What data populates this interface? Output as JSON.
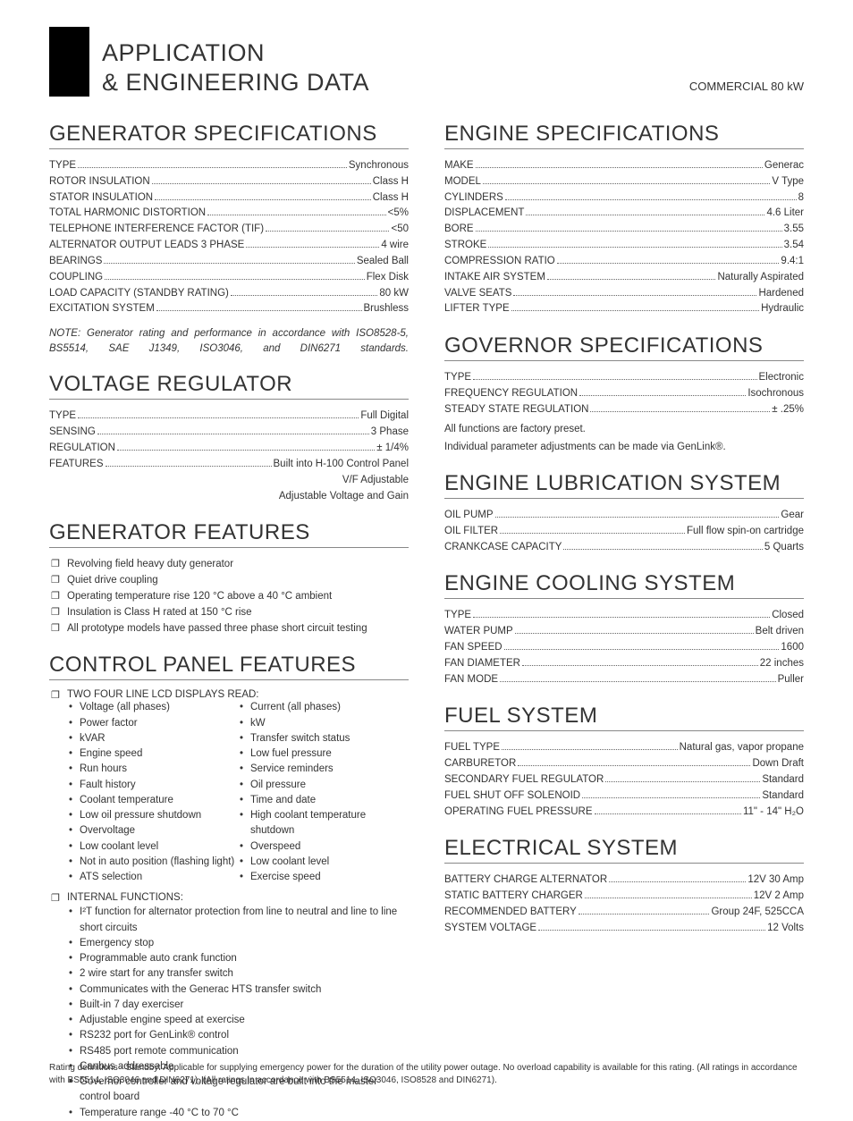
{
  "header": {
    "title_line1": "APPLICATION",
    "title_line2": "& ENGINEERING DATA",
    "right": "COMMERCIAL 80 kW"
  },
  "left": {
    "generator_specs": {
      "title": "GENERATOR SPECIFICATIONS",
      "rows": [
        {
          "label": "TYPE",
          "value": "Synchronous"
        },
        {
          "label": "ROTOR INSULATION",
          "value": "Class H"
        },
        {
          "label": "STATOR INSULATION",
          "value": "Class H"
        },
        {
          "label": "TOTAL HARMONIC DISTORTION",
          "value": "<5%"
        },
        {
          "label": "TELEPHONE INTERFERENCE FACTOR (TIF)",
          "value": "<50"
        },
        {
          "label": "ALTERNATOR OUTPUT LEADS 3 PHASE",
          "value": "4 wire"
        },
        {
          "label": "BEARINGS",
          "value": "Sealed Ball"
        },
        {
          "label": "COUPLING",
          "value": "Flex Disk"
        },
        {
          "label": "LOAD CAPACITY (STANDBY RATING)",
          "value": "80 kW"
        },
        {
          "label": "EXCITATION SYSTEM",
          "value": "Brushless"
        }
      ],
      "note": "NOTE: Generator rating and performance in accordance with ISO8528-5, BS5514, SAE J1349, ISO3046, and DIN6271 standards."
    },
    "voltage_regulator": {
      "title": "VOLTAGE REGULATOR",
      "rows": [
        {
          "label": "TYPE",
          "value": "Full Digital"
        },
        {
          "label": "SENSING",
          "value": "3 Phase"
        },
        {
          "label": "REGULATION",
          "value": "± 1/4%"
        },
        {
          "label": "FEATURES",
          "value": "Built into H-100 Control Panel"
        }
      ],
      "trailing": [
        "V/F Adjustable",
        "Adjustable Voltage and Gain"
      ]
    },
    "generator_features": {
      "title": "GENERATOR FEATURES",
      "items": [
        "Revolving field heavy duty generator",
        "Quiet drive coupling",
        "Operating temperature rise 120 °C above a 40 °C ambient",
        "Insulation is Class H rated at 150 °C rise",
        "All prototype models have passed three phase short circuit testing"
      ]
    },
    "control_panel": {
      "title": "CONTROL PANEL FEATURES",
      "lcd_heading": "TWO FOUR LINE LCD DISPLAYS READ:",
      "lcd_left": [
        "Voltage (all phases)",
        "Power factor",
        "kVAR",
        "Engine speed",
        "Run hours",
        "Fault history",
        "Coolant temperature",
        "Low oil pressure shutdown",
        "Overvoltage",
        "Low coolant level",
        "Not in auto position (flashing light)",
        "ATS selection"
      ],
      "lcd_right": [
        "Current (all phases)",
        "kW",
        "Transfer switch status",
        "Low fuel pressure",
        "Service reminders",
        "Oil pressure",
        "Time and date",
        "High coolant temperature shutdown",
        "Overspeed",
        "Low coolant level",
        "Exercise speed"
      ],
      "internal_heading": "INTERNAL FUNCTIONS:",
      "internal_items": [
        "I²T function for alternator protection from line to neutral and line to line short circuits",
        "Emergency stop",
        "Programmable auto crank function",
        "2 wire start for any transfer switch",
        "Communicates with the Generac HTS transfer switch",
        "Built-in 7 day exerciser",
        "Adjustable engine speed at exercise",
        "RS232 port for GenLink® control",
        "RS485 port remote communication",
        "Canbus addressable",
        "Governor controller and voltage regulator are built into the master control board",
        "Temperature range -40 °C to 70 °C"
      ]
    }
  },
  "right": {
    "engine_specs": {
      "title": "ENGINE SPECIFICATIONS",
      "rows": [
        {
          "label": "MAKE",
          "value": "Generac"
        },
        {
          "label": "MODEL",
          "value": "V Type"
        },
        {
          "label": "CYLINDERS",
          "value": "8"
        },
        {
          "label": "DISPLACEMENT",
          "value": "4.6 Liter"
        },
        {
          "label": "BORE",
          "value": "3.55"
        },
        {
          "label": "STROKE",
          "value": "3.54"
        },
        {
          "label": "COMPRESSION RATIO",
          "value": "9.4:1"
        },
        {
          "label": "INTAKE AIR SYSTEM",
          "value": "Naturally Aspirated"
        },
        {
          "label": "VALVE SEATS",
          "value": "Hardened"
        },
        {
          "label": "LIFTER TYPE",
          "value": "Hydraulic"
        }
      ]
    },
    "governor": {
      "title": "GOVERNOR SPECIFICATIONS",
      "rows": [
        {
          "label": "TYPE",
          "value": "Electronic"
        },
        {
          "label": "FREQUENCY REGULATION",
          "value": "Isochronous"
        },
        {
          "label": "STEADY STATE REGULATION",
          "value": "± .25%"
        }
      ],
      "notes": [
        "All functions are factory preset.",
        "Individual parameter adjustments can be made via GenLink®."
      ]
    },
    "lubrication": {
      "title": "ENGINE LUBRICATION SYSTEM",
      "rows": [
        {
          "label": "OIL PUMP",
          "value": "Gear"
        },
        {
          "label": "OIL FILTER",
          "value": "Full flow spin-on cartridge"
        },
        {
          "label": "CRANKCASE CAPACITY",
          "value": "5 Quarts"
        }
      ]
    },
    "cooling": {
      "title": "ENGINE COOLING SYSTEM",
      "rows": [
        {
          "label": "TYPE",
          "value": "Closed"
        },
        {
          "label": "WATER PUMP",
          "value": "Belt driven"
        },
        {
          "label": "FAN SPEED",
          "value": "1600"
        },
        {
          "label": "FAN DIAMETER",
          "value": "22 inches"
        },
        {
          "label": "FAN MODE",
          "value": "Puller"
        }
      ]
    },
    "fuel": {
      "title": "FUEL SYSTEM",
      "rows": [
        {
          "label": "FUEL TYPE",
          "value": "Natural gas, vapor propane"
        },
        {
          "label": "CARBURETOR",
          "value": "Down Draft"
        },
        {
          "label": "SECONDARY FUEL REGULATOR",
          "value": "Standard"
        },
        {
          "label": "FUEL SHUT OFF SOLENOID",
          "value": "Standard"
        },
        {
          "label": "OPERATING FUEL PRESSURE",
          "value": "11\" - 14\" H₂O"
        }
      ]
    },
    "electrical": {
      "title": "ELECTRICAL SYSTEM",
      "rows": [
        {
          "label": "BATTERY CHARGE ALTERNATOR",
          "value": "12V 30 Amp"
        },
        {
          "label": "STATIC BATTERY CHARGER",
          "value": "12V 2 Amp"
        },
        {
          "label": "RECOMMENDED BATTERY",
          "value": "Group 24F, 525CCA"
        },
        {
          "label": "SYSTEM VOLTAGE",
          "value": "12 Volts"
        }
      ]
    }
  },
  "footer": "Rating definitions - Standby: Applicable for supplying emergency power for the duration of the utility power outage. No overload capability is available for this rating. (All ratings in accordance with BS5514, ISO3046 and DIN6271). (All ratings in accordance with BS5514, ISO3046, ISO8528 and DIN6271)."
}
